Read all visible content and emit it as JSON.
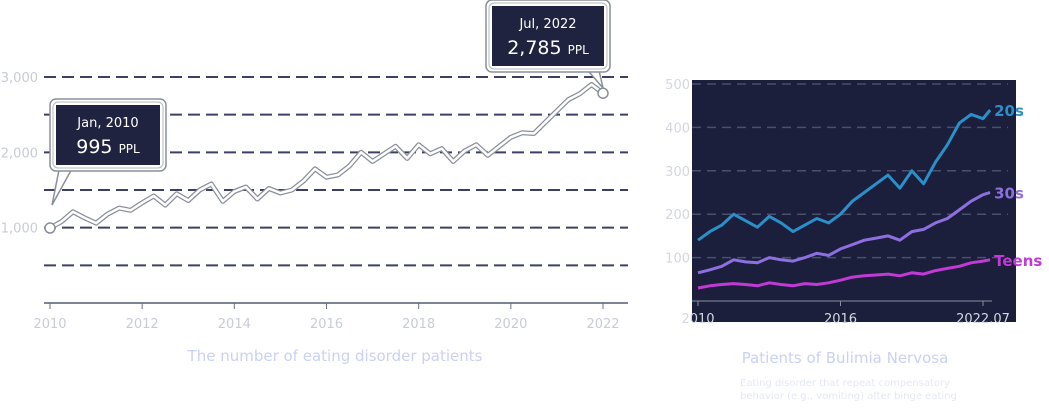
{
  "chart_data": [
    {
      "type": "line",
      "title": "The number of eating disorder patients",
      "xlim": [
        2010,
        2022.6
      ],
      "ylim": [
        0,
        3300
      ],
      "x_ticks": [
        "2010",
        "2012",
        "2014",
        "2016",
        "2018",
        "2020",
        "2022"
      ],
      "y_ticks": [
        "1,000",
        "2,000",
        "3,000"
      ],
      "grid": "dashed horizontal",
      "series": [
        {
          "x": [
            2010.0,
            2010.25,
            2010.5,
            2010.75,
            2011.0,
            2011.25,
            2011.5,
            2011.75,
            2012.0,
            2012.25,
            2012.5,
            2012.75,
            2013.0,
            2013.25,
            2013.5,
            2013.75,
            2014.0,
            2014.25,
            2014.5,
            2014.75,
            2015.0,
            2015.25,
            2015.5,
            2015.75,
            2016.0,
            2016.25,
            2016.5,
            2016.75,
            2017.0,
            2017.25,
            2017.5,
            2017.75,
            2018.0,
            2018.25,
            2018.5,
            2018.75,
            2019.0,
            2019.25,
            2019.5,
            2019.75,
            2020.0,
            2020.25,
            2020.5,
            2020.75,
            2021.0,
            2021.25,
            2021.5,
            2021.75,
            2022.0
          ],
          "y": [
            995,
            1080,
            1210,
            1130,
            1060,
            1180,
            1260,
            1230,
            1330,
            1420,
            1300,
            1450,
            1360,
            1500,
            1580,
            1350,
            1480,
            1540,
            1380,
            1520,
            1460,
            1500,
            1620,
            1780,
            1670,
            1700,
            1820,
            2000,
            1880,
            1980,
            2080,
            1920,
            2100,
            1980,
            2050,
            1880,
            2020,
            2100,
            1960,
            2080,
            2200,
            2260,
            2250,
            2400,
            2550,
            2700,
            2780,
            2900,
            2785
          ]
        }
      ],
      "annotations": [
        {
          "date": "Jan, 2010",
          "value": "995",
          "unit": "PPL",
          "x": 2010.0,
          "y": 995
        },
        {
          "date": "Jul, 2022",
          "value": "2,785",
          "unit": "PPL",
          "x": 2022.0,
          "y": 2785
        }
      ]
    },
    {
      "type": "line",
      "title": "Patients of Bulimia Nervosa",
      "subtitle": "Eating disorder that repeat compensatory behavior (e.g., vomiting) after binge eating",
      "xlim": [
        2010,
        2022.8
      ],
      "ylim": [
        0,
        520
      ],
      "x_ticks": [
        {
          "label": "2010",
          "x": 2010
        },
        {
          "label": "2016",
          "x": 2016
        },
        {
          "label": "2022.07",
          "x": 2022.0
        }
      ],
      "y_ticks": [
        "100",
        "200",
        "300",
        "400",
        "500"
      ],
      "grid": "dashed horizontal",
      "series": [
        {
          "name": "20s",
          "color": "#2b8fc9",
          "x": [
            2010.0,
            2010.5,
            2011.0,
            2011.5,
            2012.0,
            2012.5,
            2013.0,
            2013.5,
            2014.0,
            2014.5,
            2015.0,
            2015.5,
            2016.0,
            2016.5,
            2017.0,
            2017.5,
            2018.0,
            2018.5,
            2019.0,
            2019.5,
            2020.0,
            2020.5,
            2021.0,
            2021.5,
            2022.0,
            2022.3
          ],
          "y": [
            140,
            160,
            175,
            200,
            185,
            170,
            195,
            180,
            160,
            175,
            190,
            180,
            200,
            230,
            250,
            270,
            290,
            260,
            300,
            270,
            320,
            360,
            410,
            430,
            420,
            440
          ]
        },
        {
          "name": "30s",
          "color": "#8e6fe0",
          "x": [
            2010.0,
            2010.5,
            2011.0,
            2011.5,
            2012.0,
            2012.5,
            2013.0,
            2013.5,
            2014.0,
            2014.5,
            2015.0,
            2015.5,
            2016.0,
            2016.5,
            2017.0,
            2017.5,
            2018.0,
            2018.5,
            2019.0,
            2019.5,
            2020.0,
            2020.5,
            2021.0,
            2021.5,
            2022.0,
            2022.3
          ],
          "y": [
            65,
            72,
            80,
            95,
            90,
            88,
            100,
            95,
            92,
            100,
            110,
            105,
            120,
            130,
            140,
            145,
            150,
            140,
            160,
            165,
            180,
            190,
            210,
            230,
            245,
            250
          ]
        },
        {
          "name": "Teens",
          "color": "#c13ad6",
          "x": [
            2010.0,
            2010.5,
            2011.0,
            2011.5,
            2012.0,
            2012.5,
            2013.0,
            2013.5,
            2014.0,
            2014.5,
            2015.0,
            2015.5,
            2016.0,
            2016.5,
            2017.0,
            2017.5,
            2018.0,
            2018.5,
            2019.0,
            2019.5,
            2020.0,
            2020.5,
            2021.0,
            2021.5,
            2022.0,
            2022.3
          ],
          "y": [
            30,
            35,
            38,
            40,
            38,
            35,
            42,
            38,
            35,
            40,
            38,
            42,
            48,
            55,
            58,
            60,
            62,
            58,
            65,
            62,
            70,
            75,
            80,
            88,
            92,
            95
          ]
        }
      ]
    }
  ]
}
